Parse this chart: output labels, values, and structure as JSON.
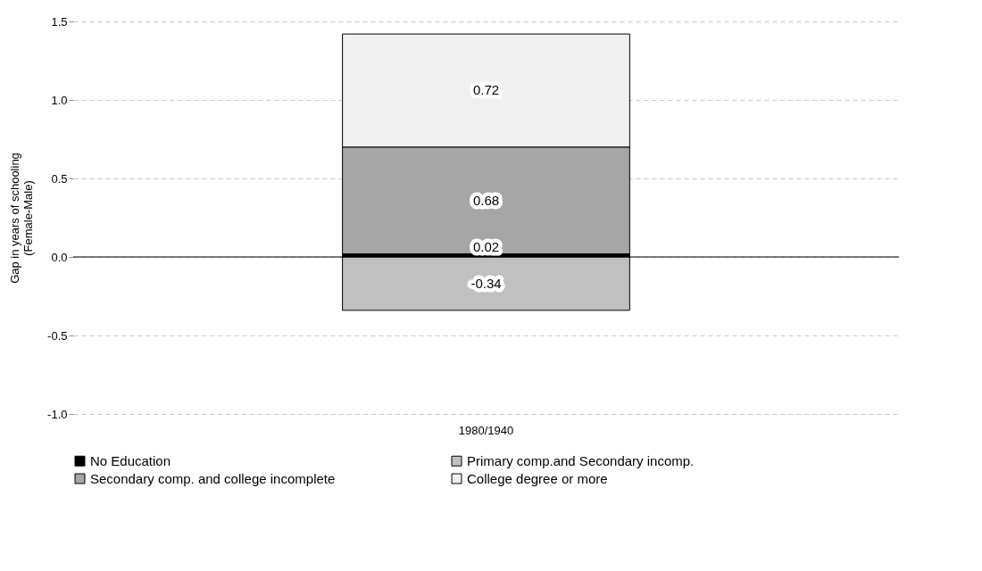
{
  "chart_data": {
    "type": "bar",
    "stacked": true,
    "categories": [
      "1980/1940"
    ],
    "ylabel": "Gap in years of schooling\n(Female-Male)",
    "series": [
      {
        "name": "No Education",
        "color": "#000000",
        "values": [
          0.02
        ]
      },
      {
        "name": "Primary comp.and Secondary incomp.",
        "color": "#c0c0c0",
        "values": [
          -0.34
        ]
      },
      {
        "name": "Secondary comp.  and  college incomplete",
        "color": "#a6a6a6",
        "values": [
          0.68
        ]
      },
      {
        "name": "College degree or more",
        "color": "#f0f0f0",
        "values": [
          0.72
        ]
      }
    ],
    "ylim": [
      -1.0,
      1.5
    ],
    "yticks": [
      {
        "value": -1,
        "label": "-1.0"
      },
      {
        "value": -0.5,
        "label": "-0.5"
      },
      {
        "value": 0,
        "label": "0.0"
      },
      {
        "value": 0.5,
        "label": "0.5"
      },
      {
        "value": 1,
        "label": "1.0"
      },
      {
        "value": 1.5,
        "label": "1.5"
      }
    ],
    "grid": "y",
    "legend": "bottom",
    "data_labels": true
  }
}
